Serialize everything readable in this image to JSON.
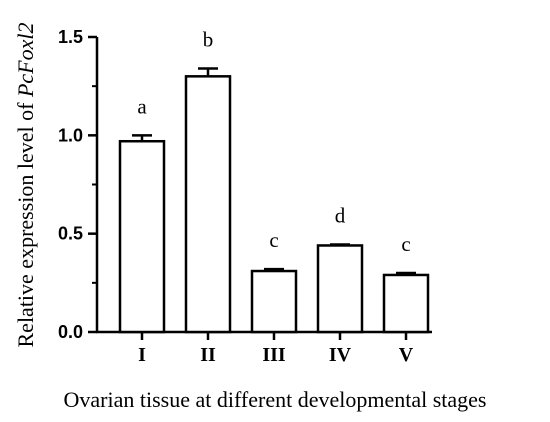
{
  "chart_data": {
    "type": "bar",
    "categories": [
      "I",
      "II",
      "III",
      "IV",
      "V"
    ],
    "values": [
      0.97,
      1.3,
      0.31,
      0.44,
      0.29
    ],
    "error_bars": [
      0.03,
      0.04,
      0.01,
      0.005,
      0.01
    ],
    "significance_letters": [
      "a",
      "b",
      "c",
      "d",
      "c"
    ],
    "xlabel": "Ovarian tissue at different developmental stages",
    "ylabel": "Relative expression level of ",
    "ylabel_gene": "PcFoxl2",
    "ylim": [
      0,
      1.5
    ],
    "y_ticks": [
      "0.0",
      "0.5",
      "1.0",
      "1.5"
    ],
    "grid": false,
    "bar_fill": "#ffffff",
    "bar_stroke": "#000000"
  }
}
